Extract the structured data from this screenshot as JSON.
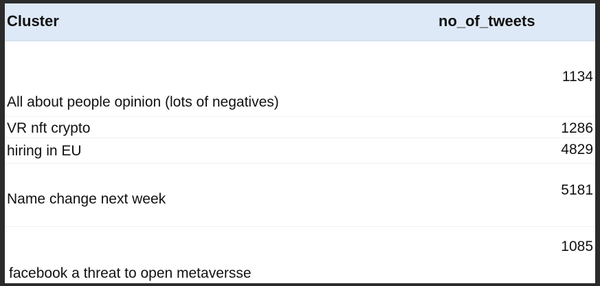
{
  "table": {
    "headers": [
      "Cluster",
      "no_of_tweets"
    ],
    "rows": [
      {
        "cluster": "All about people opinion (lots of negatives)",
        "no_of_tweets": "1134"
      },
      {
        "cluster": "VR nft crypto",
        "no_of_tweets": "1286"
      },
      {
        "cluster": "hiring in EU",
        "no_of_tweets": "4829"
      },
      {
        "cluster": "Name change next week",
        "no_of_tweets": "5181"
      },
      {
        "cluster": "facebook a threat to open metaversse",
        "no_of_tweets": "1085"
      }
    ]
  }
}
